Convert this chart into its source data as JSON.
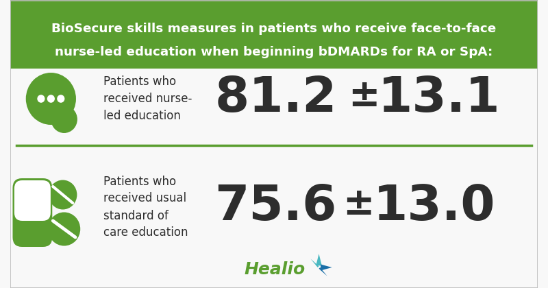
{
  "title_line1": "BioSecure skills measures in patients who receive face-to-face",
  "title_line2": "nurse-led education when beginning bDMARDs for RA or SpA:",
  "title_bg_color": "#5a9e2f",
  "title_text_color": "#ffffff",
  "panel_bg_color": "#f8f8f8",
  "divider_color": "#5a9e2f",
  "top_label": "Patients who\nreceived nurse-\nled education",
  "top_value": "81.2",
  "top_pm": "±",
  "top_sd": "13.1",
  "bottom_label": "Patients who\nreceived usual\nstandard of\ncare education",
  "bottom_value": "75.6",
  "bottom_pm": "±",
  "bottom_sd": "13.0",
  "value_color": "#2d2d2d",
  "label_color": "#2d2d2d",
  "icon_color": "#5a9e2f",
  "healio_text_color": "#5a9e2f",
  "healio_star_blue": "#1a6fa8",
  "healio_star_teal": "#4ab8c1",
  "border_color": "#bbbbbb"
}
